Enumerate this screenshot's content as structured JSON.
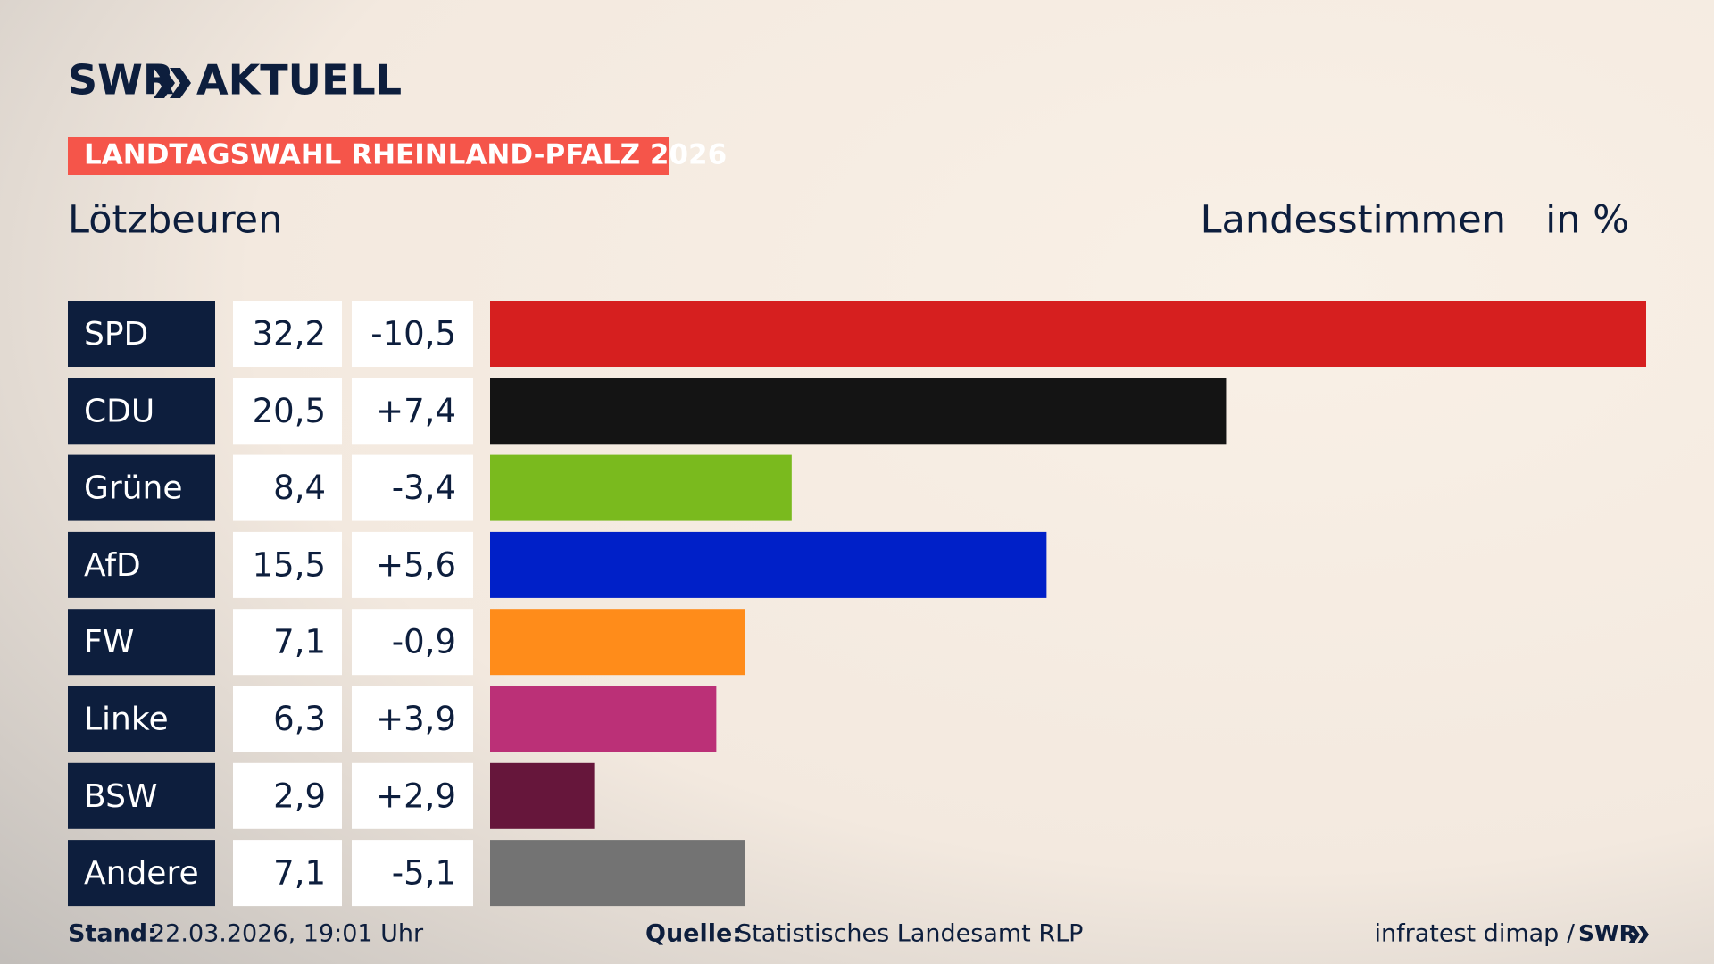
{
  "chart_data": {
    "type": "bar",
    "brand": "SWR",
    "brand_sub": "AKTUELL",
    "title": "LANDTAGSWAHL RHEINLAND-PFALZ 2026",
    "subtitle": "Lötzbeuren",
    "value_header": "Landesstimmen",
    "unit": "in %",
    "categories": [
      "SPD",
      "CDU",
      "Grüne",
      "AfD",
      "FW",
      "Linke",
      "BSW",
      "Andere"
    ],
    "values": [
      32.2,
      20.5,
      8.4,
      15.5,
      7.1,
      6.3,
      2.9,
      7.1
    ],
    "value_labels": [
      "32,2",
      "20,5",
      "8,4",
      "15,5",
      "7,1",
      "6,3",
      "2,9",
      "7,1"
    ],
    "changes": [
      -10.5,
      7.4,
      -3.4,
      5.6,
      -0.9,
      3.9,
      2.9,
      -5.1
    ],
    "change_labels": [
      "-10,5",
      "+7,4",
      "-3,4",
      "+5,6",
      "-0,9",
      "+3,9",
      "+2,9",
      "-5,1"
    ],
    "colors": [
      "#d61f1f",
      "#141414",
      "#7aba1e",
      "#0020c8",
      "#ff8c1a",
      "#bb3077",
      "#66163b",
      "#737373"
    ],
    "xlim": [
      0,
      32.2
    ],
    "footer": {
      "date_label": "Stand:",
      "date": "22.03.2026, 19:01 Uhr",
      "source_label": "Quelle:",
      "source": "Statistisches Landesamt RLP",
      "credit": "infratest dimap /",
      "credit_brand": "SWR"
    }
  }
}
